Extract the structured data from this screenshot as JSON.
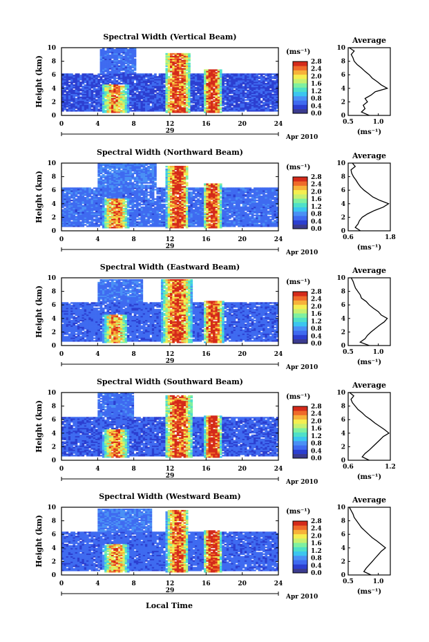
{
  "figure": {
    "xlabel": "Local Time",
    "height_label": "Height (km)",
    "unit_label": "(ms⁻¹)",
    "date_day": "29",
    "date_month": "Apr 2010",
    "average_title": "Average"
  },
  "colors": {
    "colormap": [
      "#3b3b8f",
      "#2c3fd0",
      "#3f6bf0",
      "#4a90f5",
      "#3cc6ef",
      "#4fe0c8",
      "#7ff0a0",
      "#c8f070",
      "#f5ee50",
      "#f7b23a",
      "#ef6a2a",
      "#d42a1a"
    ],
    "background": "#ffffff"
  },
  "chart_data": [
    {
      "type": "heatmap",
      "title": "Spectral Width (Vertical Beam)",
      "xlabel": "",
      "ylabel": "Height (km)",
      "xlim": [
        0,
        24
      ],
      "ylim": [
        0,
        10
      ],
      "xticks": [
        0,
        4,
        8,
        12,
        16,
        20,
        24
      ],
      "yticks": [
        0,
        2,
        4,
        6,
        8,
        10
      ],
      "colorbar": {
        "label": "(ms⁻¹)",
        "range": [
          0,
          2.8
        ],
        "ticks": [
          "2.8",
          "2.4",
          "2.0",
          "1.6",
          "1.2",
          "0.8",
          "0.4",
          "0.0"
        ]
      },
      "regions": [
        {
          "name": "lower layer",
          "x0": 0.0,
          "x1": 24.0,
          "y0": 0.6,
          "y1": 6.2,
          "value": 0.45
        },
        {
          "name": "upper layer",
          "x0": 4.2,
          "x1": 8.2,
          "y0": 6.2,
          "y1": 9.8,
          "value": 0.6
        },
        {
          "name": "convection 04-07 LT",
          "x0": 4.3,
          "x1": 7.3,
          "y0": 0.3,
          "y1": 4.6,
          "value": 2.0
        },
        {
          "name": "convection 12-14 LT",
          "x0": 11.3,
          "x1": 14.2,
          "y0": 0.3,
          "y1": 9.2,
          "value": 2.4
        },
        {
          "name": "convection 16-18 LT",
          "x0": 15.6,
          "x1": 17.6,
          "y0": 0.3,
          "y1": 6.8,
          "value": 2.6
        }
      ],
      "average": {
        "xlim": [
          0.5,
          1.2
        ],
        "xticks": [
          "0.5",
          "1.0"
        ],
        "ylim": [
          0,
          10
        ],
        "xlabel": "(ms⁻¹)",
        "y": [
          0,
          0.5,
          1,
          1.5,
          2,
          2.5,
          3,
          3.5,
          4,
          4.5,
          5,
          5.5,
          6,
          6.5,
          7,
          7.5,
          8,
          8.5,
          9,
          9.5,
          10
        ],
        "x": [
          0.85,
          0.72,
          0.78,
          0.75,
          0.82,
          0.78,
          0.88,
          0.95,
          1.15,
          1.05,
          0.98,
          0.9,
          0.85,
          0.78,
          0.72,
          0.65,
          0.6,
          0.58,
          0.55,
          0.6,
          0.52
        ]
      }
    },
    {
      "type": "heatmap",
      "title": "Spectral Width (Northward Beam)",
      "xlabel": "",
      "ylabel": "Height (km)",
      "xlim": [
        0,
        24
      ],
      "ylim": [
        0,
        10
      ],
      "xticks": [
        0,
        4,
        8,
        12,
        16,
        20,
        24
      ],
      "yticks": [
        0,
        2,
        4,
        6,
        8,
        10
      ],
      "colorbar": {
        "label": "(ms⁻¹)",
        "range": [
          0,
          2.8
        ],
        "ticks": [
          "2.8",
          "2.4",
          "2.0",
          "1.6",
          "1.2",
          "0.8",
          "0.4",
          "0.0"
        ]
      },
      "regions": [
        {
          "name": "lower layer",
          "x0": 0.0,
          "x1": 24.0,
          "y0": 0.5,
          "y1": 6.4,
          "value": 0.6
        },
        {
          "name": "upper layer",
          "x0": 4.0,
          "x1": 10.5,
          "y0": 6.4,
          "y1": 9.8,
          "value": 0.7
        },
        {
          "name": "convection 04-07 LT",
          "x0": 4.5,
          "x1": 7.3,
          "y0": 0.3,
          "y1": 4.7,
          "value": 2.1
        },
        {
          "name": "convection 12-14 LT",
          "x0": 11.5,
          "x1": 14.0,
          "y0": 0.3,
          "y1": 9.5,
          "value": 2.5
        },
        {
          "name": "convection 16-18 LT",
          "x0": 15.6,
          "x1": 17.6,
          "y0": 0.3,
          "y1": 7.0,
          "value": 2.5
        }
      ],
      "average": {
        "xlim": [
          0.6,
          1.8
        ],
        "xticks": [
          "0.6",
          "1.8"
        ],
        "ylim": [
          0,
          10
        ],
        "xlabel": "(ms⁻¹)",
        "y": [
          0,
          0.5,
          1,
          1.5,
          2,
          2.5,
          3,
          3.5,
          4,
          4.5,
          5,
          5.5,
          6,
          6.5,
          7,
          7.5,
          8,
          8.5,
          9,
          9.5,
          10
        ],
        "x": [
          0.95,
          0.8,
          0.88,
          0.92,
          1.0,
          1.15,
          1.35,
          1.6,
          1.75,
          1.5,
          1.3,
          1.18,
          1.05,
          0.95,
          0.88,
          0.82,
          0.75,
          0.7,
          0.68,
          0.8,
          0.72
        ]
      }
    },
    {
      "type": "heatmap",
      "title": "Spectral Width (Eastward Beam)",
      "xlabel": "",
      "ylabel": "Height (km)",
      "xlim": [
        0,
        24
      ],
      "ylim": [
        0,
        10
      ],
      "xticks": [
        0,
        4,
        8,
        12,
        16,
        20,
        24
      ],
      "yticks": [
        0,
        2,
        4,
        6,
        8,
        10
      ],
      "colorbar": {
        "label": "(ms⁻¹)",
        "range": [
          0,
          2.8
        ],
        "ticks": [
          "2.8",
          "2.4",
          "2.0",
          "1.6",
          "1.2",
          "0.8",
          "0.4",
          "0.0"
        ]
      },
      "regions": [
        {
          "name": "lower layer",
          "x0": 0.0,
          "x1": 24.0,
          "y0": 0.5,
          "y1": 6.3,
          "value": 0.55
        },
        {
          "name": "upper layer",
          "x0": 4.0,
          "x1": 9.0,
          "y0": 6.3,
          "y1": 9.7,
          "value": 0.65
        },
        {
          "name": "convection 04-07 LT",
          "x0": 4.5,
          "x1": 7.2,
          "y0": 0.3,
          "y1": 4.6,
          "value": 2.0
        },
        {
          "name": "convection 12-14 LT",
          "x0": 11.0,
          "x1": 14.3,
          "y0": 0.3,
          "y1": 9.6,
          "value": 2.3
        },
        {
          "name": "convection 16-18 LT",
          "x0": 15.6,
          "x1": 17.8,
          "y0": 0.3,
          "y1": 6.6,
          "value": 2.5
        }
      ],
      "average": {
        "xlim": [
          0.5,
          1.2
        ],
        "xticks": [
          "0.5",
          "1.0"
        ],
        "ylim": [
          0,
          10
        ],
        "xlabel": "(ms⁻¹)",
        "y": [
          0,
          0.5,
          1,
          1.5,
          2,
          2.5,
          3,
          3.5,
          4,
          4.5,
          5,
          5.5,
          6,
          6.5,
          7,
          7.5,
          8,
          8.5,
          9,
          9.5,
          10
        ],
        "x": [
          0.85,
          0.7,
          0.78,
          0.82,
          0.88,
          0.95,
          1.02,
          1.1,
          1.15,
          1.05,
          1.0,
          0.92,
          0.85,
          0.8,
          0.72,
          0.7,
          0.66,
          0.62,
          0.6,
          0.58,
          0.55
        ]
      }
    },
    {
      "type": "heatmap",
      "title": "Spectral Width (Southward Beam)",
      "xlabel": "",
      "ylabel": "Height (km)",
      "xlim": [
        0,
        24
      ],
      "ylim": [
        0,
        10
      ],
      "xticks": [
        0,
        4,
        8,
        12,
        16,
        20,
        24
      ],
      "yticks": [
        0,
        2,
        4,
        6,
        8,
        10
      ],
      "colorbar": {
        "label": "(ms⁻¹)",
        "range": [
          0,
          2.8
        ],
        "ticks": [
          "2.8",
          "2.4",
          "2.0",
          "1.6",
          "1.2",
          "0.8",
          "0.4",
          "0.0"
        ]
      },
      "regions": [
        {
          "name": "lower layer",
          "x0": 0.0,
          "x1": 24.0,
          "y0": 0.5,
          "y1": 6.4,
          "value": 0.5
        },
        {
          "name": "upper layer",
          "x0": 4.0,
          "x1": 8.0,
          "y0": 6.4,
          "y1": 9.8,
          "value": 0.6
        },
        {
          "name": "convection 04-07 LT",
          "x0": 4.5,
          "x1": 7.3,
          "y0": 0.3,
          "y1": 4.5,
          "value": 2.1
        },
        {
          "name": "convection 12-14 LT",
          "x0": 11.3,
          "x1": 14.4,
          "y0": 0.3,
          "y1": 9.4,
          "value": 2.4
        },
        {
          "name": "convection 16-18 LT",
          "x0": 15.7,
          "x1": 17.6,
          "y0": 0.3,
          "y1": 6.6,
          "value": 2.6
        }
      ],
      "average": {
        "xlim": [
          0.6,
          1.2
        ],
        "xticks": [
          "0.6",
          "1.2"
        ],
        "ylim": [
          0,
          10
        ],
        "xlabel": "(ms⁻¹)",
        "y": [
          0,
          0.5,
          1,
          1.5,
          2,
          2.5,
          3,
          3.5,
          4,
          4.5,
          5,
          5.5,
          6,
          6.5,
          7,
          7.5,
          8,
          8.5,
          9,
          9.5,
          10
        ],
        "x": [
          0.9,
          0.8,
          0.84,
          0.9,
          0.95,
          1.0,
          1.05,
          1.1,
          1.18,
          1.12,
          1.05,
          0.98,
          0.92,
          0.85,
          0.8,
          0.74,
          0.7,
          0.66,
          0.64,
          0.68,
          0.62
        ]
      }
    },
    {
      "type": "heatmap",
      "title": "Spectral Width (Westward Beam)",
      "xlabel": "Local Time",
      "ylabel": "Height (km)",
      "xlim": [
        0,
        24
      ],
      "ylim": [
        0,
        10
      ],
      "xticks": [
        0,
        4,
        8,
        12,
        16,
        20,
        24
      ],
      "yticks": [
        0,
        2,
        4,
        6,
        8,
        10
      ],
      "colorbar": {
        "label": "(ms⁻¹)",
        "range": [
          0,
          2.8
        ],
        "ticks": [
          "2.8",
          "2.4",
          "2.0",
          "1.6",
          "1.2",
          "0.8",
          "0.4",
          "0.0"
        ]
      },
      "regions": [
        {
          "name": "lower layer",
          "x0": 0.0,
          "x1": 24.0,
          "y0": 0.5,
          "y1": 6.3,
          "value": 0.55
        },
        {
          "name": "upper layer",
          "x0": 4.0,
          "x1": 10.0,
          "y0": 6.3,
          "y1": 9.6,
          "value": 0.7
        },
        {
          "name": "convection 04-07 LT",
          "x0": 4.5,
          "x1": 7.3,
          "y0": 0.3,
          "y1": 4.5,
          "value": 2.0
        },
        {
          "name": "convection 12-14 LT",
          "x0": 11.5,
          "x1": 14.0,
          "y0": 0.3,
          "y1": 9.5,
          "value": 2.3
        },
        {
          "name": "convection 16-18 LT",
          "x0": 15.6,
          "x1": 17.6,
          "y0": 0.3,
          "y1": 6.6,
          "value": 2.6
        }
      ],
      "average": {
        "xlim": [
          0.5,
          1.2
        ],
        "xticks": [
          "0.5",
          "1.0"
        ],
        "ylim": [
          0,
          10
        ],
        "xlabel": "(ms⁻¹)",
        "y": [
          0,
          0.5,
          1,
          1.5,
          2,
          2.5,
          3,
          3.5,
          4,
          4.5,
          5,
          5.5,
          6,
          6.5,
          7,
          7.5,
          8,
          8.5,
          9,
          9.5,
          10
        ],
        "x": [
          0.88,
          0.76,
          0.8,
          0.85,
          0.9,
          0.95,
          1.0,
          1.05,
          1.12,
          1.05,
          0.98,
          0.9,
          0.84,
          0.78,
          0.72,
          0.68,
          0.64,
          0.6,
          0.58,
          0.55,
          0.52
        ]
      }
    }
  ]
}
